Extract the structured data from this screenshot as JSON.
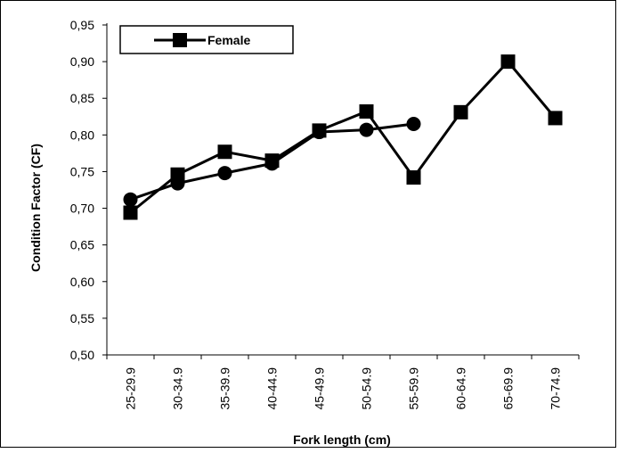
{
  "chart_data": {
    "type": "line",
    "categories": [
      "25-29.9",
      "30-34.9",
      "35-39.9",
      "40-44.9",
      "45-49.9",
      "50-54.9",
      "55-59.9",
      "60-64.9",
      "65-69.9",
      "70-74.9"
    ],
    "xlabel": "Fork length (cm)",
    "ylabel": "Condition Factor (CF)",
    "ylim": [
      0.5,
      0.95
    ],
    "yticks": [
      "0,50",
      "0,55",
      "0,60",
      "0,65",
      "0,70",
      "0,75",
      "0,80",
      "0,85",
      "0,90",
      "0,95"
    ],
    "grid": false,
    "legend_position": "top-left",
    "series": [
      {
        "name": "Female",
        "marker": "square",
        "color": "#000000",
        "values": [
          0.694,
          0.746,
          0.777,
          0.765,
          0.806,
          0.832,
          0.742,
          0.831,
          0.9,
          0.823
        ]
      },
      {
        "marker": "circle",
        "color": "#000000",
        "values": [
          0.712,
          0.734,
          0.748,
          0.761,
          0.804,
          0.807,
          0.815,
          null,
          null,
          null
        ]
      }
    ]
  }
}
